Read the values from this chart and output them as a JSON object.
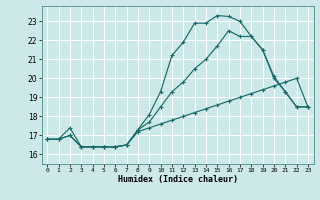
{
  "xlabel": "Humidex (Indice chaleur)",
  "xlim": [
    -0.5,
    23.5
  ],
  "ylim": [
    15.5,
    23.8
  ],
  "yticks": [
    16,
    17,
    18,
    19,
    20,
    21,
    22,
    23
  ],
  "xticks": [
    0,
    1,
    2,
    3,
    4,
    5,
    6,
    7,
    8,
    9,
    10,
    11,
    12,
    13,
    14,
    15,
    16,
    17,
    18,
    19,
    20,
    21,
    22,
    23
  ],
  "bg_color": "#cde8e8",
  "grid_color": "#b8d8d8",
  "line_color": "#1a6b6b",
  "line1_x": [
    0,
    1,
    2,
    3,
    4,
    5,
    6,
    7,
    8,
    9,
    10,
    11,
    12,
    13,
    14,
    15,
    16,
    17,
    18,
    19,
    20,
    21,
    22,
    23
  ],
  "line1_y": [
    16.8,
    16.8,
    17.0,
    16.4,
    16.4,
    16.4,
    16.4,
    16.5,
    17.3,
    18.1,
    19.3,
    21.2,
    21.9,
    22.9,
    22.9,
    23.3,
    23.25,
    23.0,
    22.2,
    21.5,
    20.1,
    19.3,
    18.5,
    18.5
  ],
  "line2_x": [
    0,
    1,
    2,
    3,
    4,
    5,
    6,
    7,
    8,
    9,
    10,
    11,
    12,
    13,
    14,
    15,
    16,
    17,
    18,
    19,
    20,
    21,
    22,
    23
  ],
  "line2_y": [
    16.8,
    16.8,
    17.4,
    16.4,
    16.4,
    16.4,
    16.4,
    16.5,
    17.3,
    17.7,
    18.5,
    19.3,
    19.8,
    20.5,
    21.0,
    21.7,
    22.5,
    22.2,
    22.2,
    21.5,
    20.0,
    19.3,
    18.5,
    18.5
  ],
  "line3_x": [
    0,
    1,
    2,
    3,
    4,
    5,
    6,
    7,
    8,
    9,
    10,
    11,
    12,
    13,
    14,
    15,
    16,
    17,
    18,
    19,
    20,
    21,
    22,
    23
  ],
  "line3_y": [
    16.8,
    16.8,
    17.0,
    16.4,
    16.4,
    16.4,
    16.4,
    16.5,
    17.2,
    17.4,
    17.6,
    17.8,
    18.0,
    18.2,
    18.4,
    18.6,
    18.8,
    19.0,
    19.2,
    19.4,
    19.6,
    19.8,
    20.0,
    18.5
  ]
}
